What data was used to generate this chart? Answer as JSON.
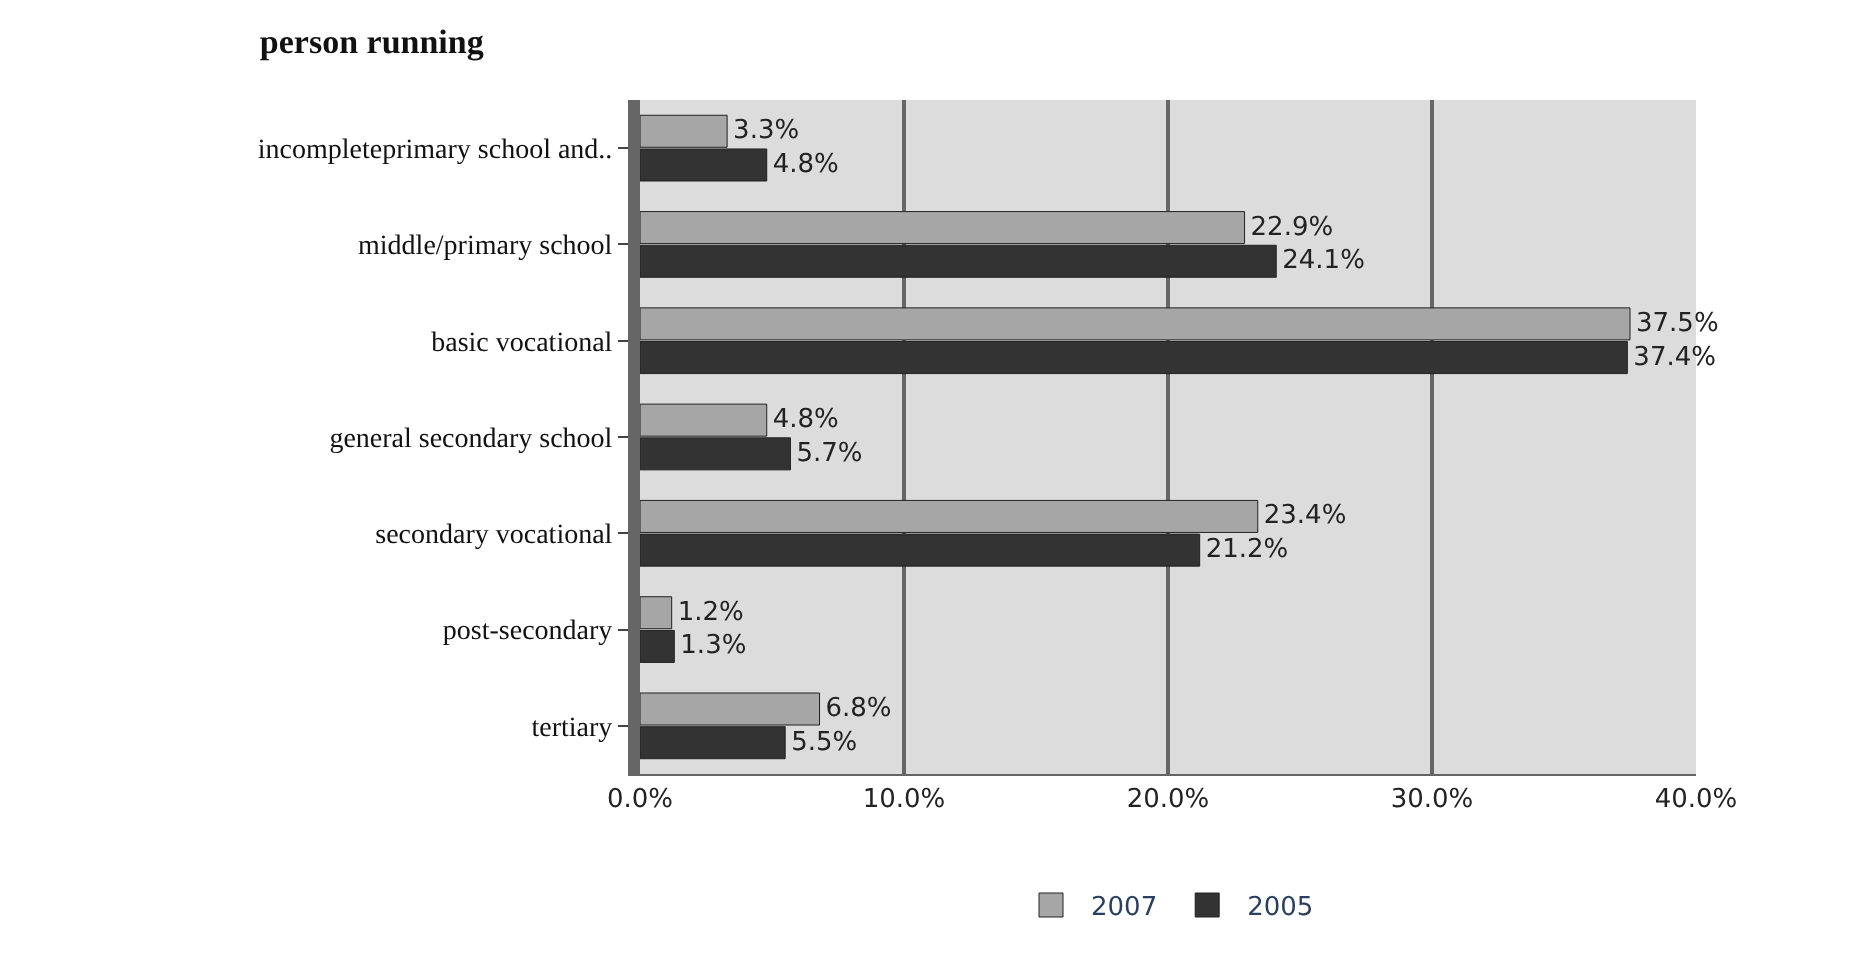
{
  "chart_data": {
    "type": "bar",
    "orientation": "horizontal",
    "title": "person running",
    "categories": [
      "incompleteprimary school and..",
      "middle/primary school",
      "basic vocational",
      "general secondary school",
      "secondary vocational",
      "post-secondary",
      "tertiary"
    ],
    "series": [
      {
        "name": "2007",
        "color": "#a6a6a6",
        "values": [
          3.3,
          22.9,
          37.5,
          4.8,
          23.4,
          1.2,
          6.8
        ],
        "value_labels": [
          "3.3%",
          "22.9%",
          "37.5%",
          "4.8%",
          "23.4%",
          "1.2%",
          "6.8%"
        ]
      },
      {
        "name": "2005",
        "color": "#333333",
        "values": [
          4.8,
          24.1,
          37.4,
          5.7,
          21.2,
          1.3,
          5.5
        ],
        "value_labels": [
          "4.8%",
          "24.1%",
          "37.4%",
          "5.7%",
          "21.2%",
          "1.3%",
          "5.5%"
        ]
      }
    ],
    "xlim": [
      0,
      40
    ],
    "xticks": [
      {
        "value": 0,
        "label": "0.0%"
      },
      {
        "value": 10,
        "label": "10.0%"
      },
      {
        "value": 20,
        "label": "20.0%"
      },
      {
        "value": 30,
        "label": "30.0%"
      },
      {
        "value": 40,
        "label": "40.0%"
      }
    ],
    "grid": "x",
    "legend": "bottom"
  }
}
